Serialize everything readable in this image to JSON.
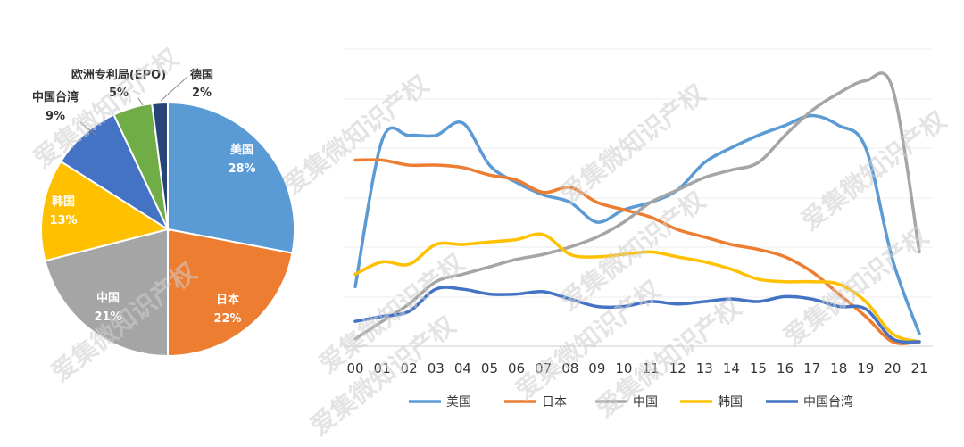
{
  "chart_data": [
    {
      "type": "pie",
      "slices": [
        {
          "name": "美国",
          "pct_label": "28%",
          "value": 28,
          "color": "#5B9BD5"
        },
        {
          "name": "日本",
          "pct_label": "22%",
          "value": 22,
          "color": "#ED7D31"
        },
        {
          "name": "中国",
          "pct_label": "21%",
          "value": 21,
          "color": "#A5A5A5"
        },
        {
          "name": "韩国",
          "pct_label": "13%",
          "value": 13,
          "color": "#FFC000"
        },
        {
          "name": "中国台湾",
          "pct_label": "9%",
          "value": 9,
          "color": "#4472C4"
        },
        {
          "name": "欧洲专利局(EPO)",
          "pct_label": "5%",
          "value": 5,
          "color": "#70AD47"
        },
        {
          "name": "德国",
          "pct_label": "2%",
          "value": 2,
          "color": "#264478"
        }
      ]
    },
    {
      "type": "line",
      "x": [
        "00",
        "01",
        "02",
        "03",
        "04",
        "05",
        "06",
        "07",
        "08",
        "09",
        "10",
        "11",
        "12",
        "13",
        "14",
        "15",
        "16",
        "17",
        "18",
        "19",
        "20",
        "21"
      ],
      "ylim": [
        0,
        100
      ],
      "grid": true,
      "legend": "bottom",
      "series": [
        {
          "name": "美国",
          "color": "#5B9BD5",
          "values": [
            24,
            83,
            85,
            85,
            90,
            73,
            66,
            61,
            58,
            50,
            55,
            58,
            63,
            74,
            80,
            85,
            89,
            93,
            89,
            80,
            35,
            5
          ]
        },
        {
          "name": "日本",
          "color": "#ED7D31",
          "values": [
            75,
            75,
            73,
            73,
            72,
            69,
            67,
            62,
            64,
            58,
            55,
            52,
            47,
            44,
            41,
            39,
            36,
            30,
            21,
            12,
            0,
            0
          ]
        },
        {
          "name": "中国",
          "color": "#A5A5A5",
          "values": [
            3,
            10,
            17,
            26,
            29,
            32,
            35,
            37,
            40,
            44,
            50,
            58,
            63,
            68,
            71,
            74,
            85,
            95,
            102,
            107,
            104,
            38
          ]
        },
        {
          "name": "韩国",
          "color": "#FFC000",
          "values": [
            29,
            34,
            33,
            41,
            41,
            42,
            43,
            45,
            37,
            36,
            37,
            38,
            36,
            34,
            31,
            27,
            26,
            26,
            25,
            18,
            5,
            0
          ]
        },
        {
          "name": "中国台湾",
          "color": "#4472C4",
          "values": [
            10,
            12,
            14,
            23,
            23,
            21,
            21,
            22,
            19,
            16,
            16,
            18,
            17,
            18,
            19,
            18,
            20,
            19,
            16,
            15,
            3,
            0
          ]
        }
      ]
    }
  ],
  "watermark": "爱集微知识产权"
}
